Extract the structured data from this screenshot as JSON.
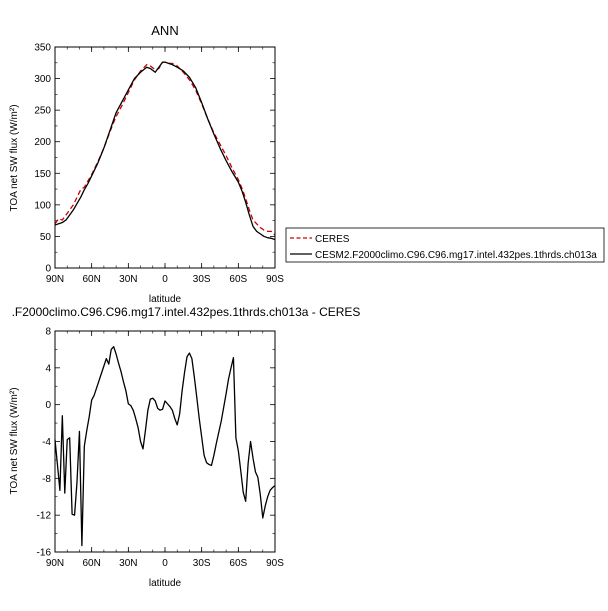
{
  "chart_data": [
    {
      "type": "line",
      "title": "ANN",
      "xlabel": "latitude",
      "ylabel": "TOA net SW flux (W/m²)",
      "xlim": [
        90,
        -90
      ],
      "ylim": [
        0,
        350
      ],
      "x_ticks": [
        90,
        60,
        30,
        0,
        -30,
        -60,
        -90
      ],
      "x_tick_labels": [
        "90N",
        "60N",
        "30N",
        "0",
        "30S",
        "60S",
        "90S"
      ],
      "y_ticks": [
        0,
        50,
        100,
        150,
        200,
        250,
        300,
        350
      ],
      "y_tick_labels": [
        "0",
        "50",
        "100",
        "150",
        "200",
        "250",
        "300",
        "350"
      ],
      "legend_placement": "right",
      "series": [
        {
          "name": "CERES",
          "color": "#cc0000",
          "style": "dashed",
          "x": [
            90,
            87,
            84,
            81,
            78,
            75,
            72,
            69,
            66,
            63,
            60,
            55,
            50,
            45,
            40,
            35,
            30,
            25,
            20,
            15,
            12,
            8,
            5,
            2,
            0,
            -3,
            -6,
            -10,
            -15,
            -20,
            -25,
            -30,
            -35,
            -40,
            -45,
            -50,
            -55,
            -60,
            -63,
            -66,
            -69,
            -72,
            -75,
            -78,
            -81,
            -84,
            -87,
            -90
          ],
          "y": [
            70,
            78,
            76,
            84,
            92,
            100,
            112,
            124,
            128,
            138,
            148,
            168,
            190,
            216,
            240,
            258,
            278,
            298,
            312,
            322,
            320,
            314,
            316,
            326,
            326,
            324,
            324,
            320,
            310,
            298,
            282,
            260,
            236,
            214,
            196,
            178,
            158,
            140,
            126,
            110,
            92,
            76,
            70,
            64,
            60,
            58,
            58,
            52
          ]
        },
        {
          "name": "CESM2.F2000climo.C96.C96.mg17.intel.432pes.1thrds.ch013a",
          "color": "#000000",
          "style": "solid",
          "x": [
            90,
            87,
            84,
            81,
            78,
            75,
            72,
            69,
            66,
            63,
            60,
            55,
            50,
            45,
            40,
            35,
            30,
            25,
            20,
            15,
            12,
            8,
            5,
            2,
            0,
            -3,
            -6,
            -10,
            -15,
            -20,
            -25,
            -30,
            -35,
            -40,
            -45,
            -50,
            -55,
            -60,
            -63,
            -66,
            -69,
            -72,
            -75,
            -78,
            -81,
            -84,
            -87,
            -90
          ],
          "y": [
            68,
            70,
            72,
            76,
            84,
            92,
            102,
            112,
            124,
            134,
            146,
            166,
            190,
            218,
            246,
            264,
            282,
            300,
            310,
            318,
            316,
            310,
            318,
            326,
            326,
            324,
            322,
            318,
            312,
            302,
            286,
            262,
            236,
            212,
            190,
            170,
            152,
            136,
            122,
            104,
            84,
            66,
            58,
            54,
            50,
            48,
            47,
            45
          ]
        }
      ]
    },
    {
      "type": "line",
      "title": ".F2000climo.C96.C96.mg17.intel.432pes.1thrds.ch013a - CERES",
      "xlabel": "latitude",
      "ylabel": "TOA net SW flux (W/m²)",
      "xlim": [
        90,
        -90
      ],
      "ylim": [
        -16,
        8
      ],
      "x_ticks": [
        90,
        60,
        30,
        0,
        -30,
        -60,
        -90
      ],
      "x_tick_labels": [
        "90N",
        "60N",
        "30N",
        "0",
        "30S",
        "60S",
        "90S"
      ],
      "y_ticks": [
        -16,
        -12,
        -8,
        -4,
        0,
        4,
        8
      ],
      "y_tick_labels": [
        "-16",
        "-12",
        "-8",
        "-4",
        "0",
        "4",
        "8"
      ],
      "series": [
        {
          "color": "#000000",
          "style": "solid",
          "x": [
            90,
            88,
            86,
            84,
            82,
            80,
            78,
            76,
            74,
            72,
            70,
            68,
            66,
            64,
            62,
            60,
            58,
            56,
            54,
            52,
            50,
            48,
            46,
            44,
            42,
            40,
            38,
            36,
            34,
            32,
            30,
            28,
            26,
            24,
            22,
            20,
            18,
            16,
            14,
            12,
            10,
            8,
            6,
            4,
            2,
            0,
            -2,
            -4,
            -6,
            -8,
            -10,
            -12,
            -14,
            -16,
            -18,
            -20,
            -22,
            -24,
            -26,
            -28,
            -30,
            -32,
            -34,
            -36,
            -38,
            -40,
            -42,
            -44,
            -46,
            -48,
            -50,
            -52,
            -54,
            -56,
            -58,
            -60,
            -62,
            -64,
            -66,
            -68,
            -70,
            -72,
            -74,
            -76,
            -78,
            -80,
            -82,
            -84,
            -86,
            -88,
            -90
          ],
          "y": [
            -3.8,
            -6.5,
            -9.3,
            -1.2,
            -9.6,
            -3.8,
            -3.6,
            -11.9,
            -12.0,
            -8.4,
            -2.9,
            -15.3,
            -4.5,
            -2.8,
            -1.3,
            0.5,
            1.0,
            1.8,
            2.6,
            3.4,
            4.2,
            5.0,
            4.4,
            6.0,
            6.3,
            5.5,
            4.5,
            3.6,
            2.5,
            1.5,
            0.1,
            -0.1,
            -0.6,
            -1.5,
            -2.5,
            -4.0,
            -4.8,
            -2.8,
            -0.6,
            0.6,
            0.7,
            0.4,
            -0.4,
            -0.6,
            -0.5,
            0.4,
            0.1,
            -0.2,
            -0.6,
            -1.5,
            -2.2,
            -1.0,
            1.5,
            3.5,
            5.2,
            5.6,
            5.0,
            3.0,
            0.8,
            -1.5,
            -3.5,
            -5.5,
            -6.3,
            -6.5,
            -6.6,
            -5.5,
            -4.2,
            -3.0,
            -1.8,
            -0.3,
            1.2,
            2.8,
            4.0,
            5.1,
            -3.6,
            -5.0,
            -7.2,
            -9.5,
            -10.5,
            -6.4,
            -4.0,
            -5.8,
            -7.3,
            -7.9,
            -9.8,
            -12.3,
            -11.0,
            -10.0,
            -9.3,
            -9.0,
            -8.8
          ]
        }
      ]
    }
  ]
}
